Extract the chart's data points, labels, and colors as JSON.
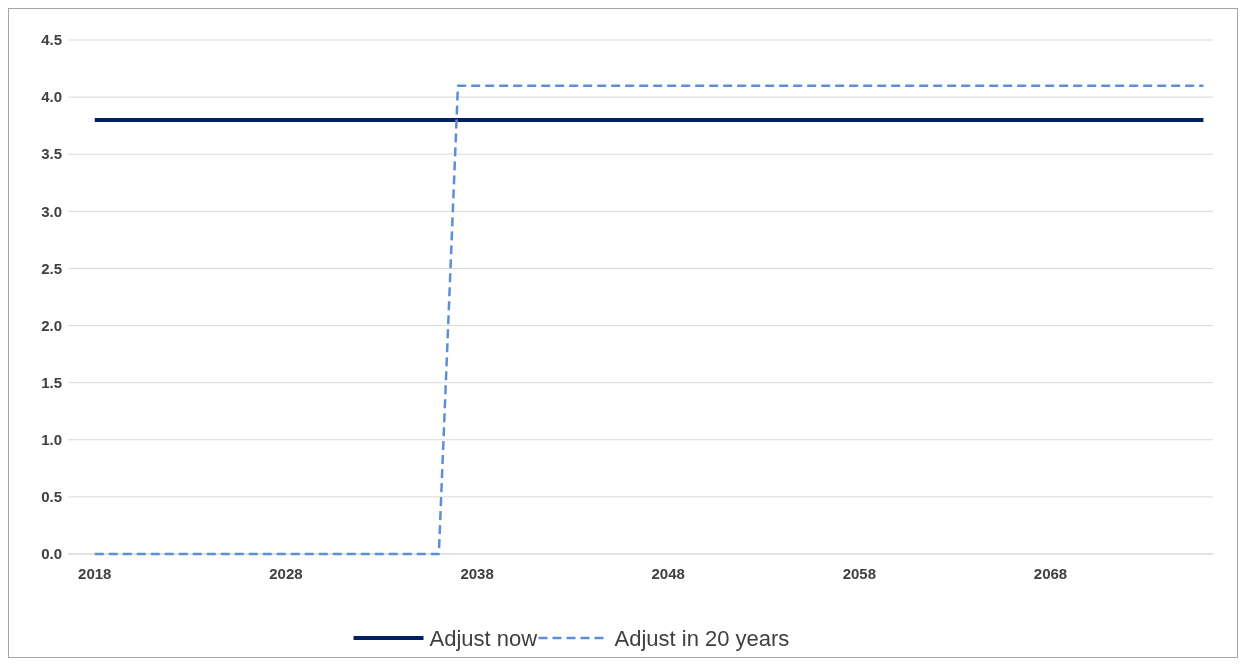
{
  "chart_data": {
    "type": "line",
    "x": [
      2018,
      2076
    ],
    "xlim": [
      2016.6,
      2076.5
    ],
    "xticks": [
      2018,
      2028,
      2038,
      2048,
      2058,
      2068
    ],
    "ylim": [
      0,
      4.5
    ],
    "yticks": [
      {
        "value": 0,
        "label": "0.0"
      },
      {
        "value": 0.5,
        "label": "0.5"
      },
      {
        "value": 1,
        "label": "1.0"
      },
      {
        "value": 1.5,
        "label": "1.5"
      },
      {
        "value": 2,
        "label": "2.0"
      },
      {
        "value": 2.5,
        "label": "2.5"
      },
      {
        "value": 3,
        "label": "3.0"
      },
      {
        "value": 3.5,
        "label": "3.5"
      },
      {
        "value": 4,
        "label": "4.0"
      },
      {
        "value": 4.5,
        "label": "4.5"
      }
    ],
    "grid": "y",
    "legend": "bottom",
    "marker": "none",
    "series": [
      {
        "name": "Adjust now",
        "color": "#002060",
        "values": [
          3.8,
          3.8
        ],
        "line_style": "solid"
      },
      {
        "name": "Adjust in 20 years",
        "color": "#5b8fd6",
        "x": [
          2018,
          2036,
          2037,
          2076
        ],
        "values": [
          0,
          0,
          4.1,
          4.1
        ],
        "line_style": "dashed"
      }
    ]
  }
}
